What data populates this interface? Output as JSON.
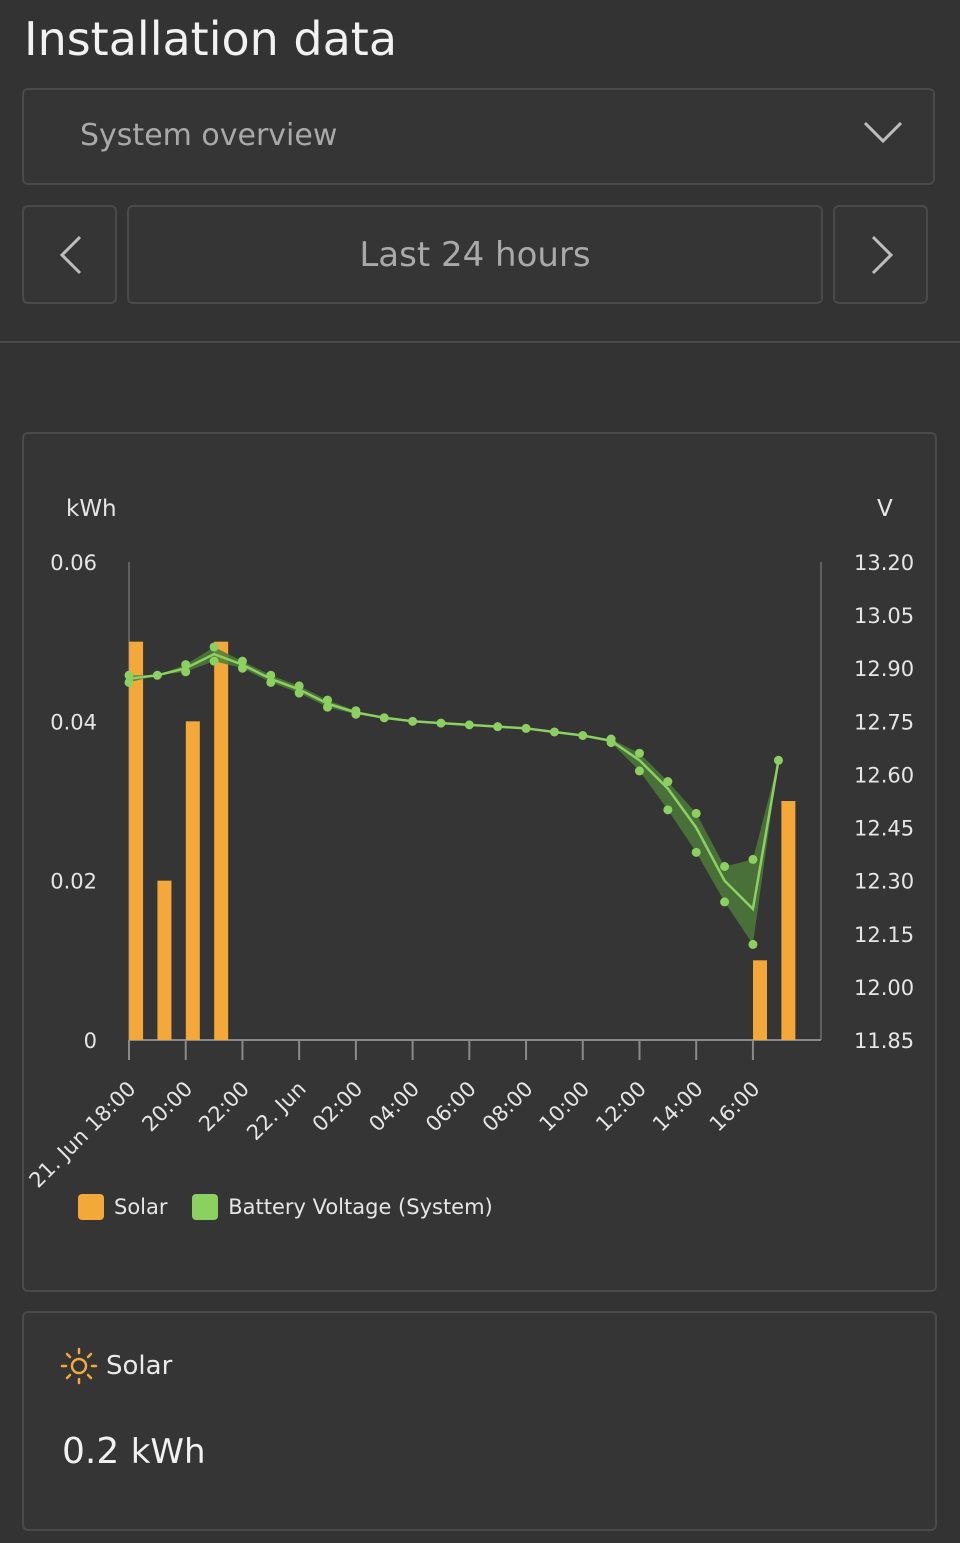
{
  "page": {
    "title": "Installation data"
  },
  "dropdown": {
    "selected": "System overview",
    "icon": "chevron-down-icon"
  },
  "range": {
    "label": "Last 24 hours",
    "prev_icon": "chevron-left-icon",
    "next_icon": "chevron-right-icon"
  },
  "colors": {
    "solar": "#f5a83a",
    "battery": "#8bd060",
    "battery_band": "#4d7a3a"
  },
  "chart_data": {
    "type": "bar+line",
    "y_left": {
      "label": "kWh",
      "ylim": [
        0,
        0.06
      ],
      "ticks": [
        "0",
        "0.02",
        "0.04",
        "0.06"
      ]
    },
    "y_right": {
      "label": "V",
      "ylim": [
        11.85,
        13.2
      ],
      "ticks": [
        "11.85",
        "12.00",
        "12.15",
        "12.30",
        "12.45",
        "12.60",
        "12.75",
        "12.90",
        "13.05",
        "13.20"
      ]
    },
    "x_ticks": [
      "21. Jun 18:00",
      "20:00",
      "22:00",
      "22. Jun",
      "02:00",
      "04:00",
      "06:00",
      "08:00",
      "10:00",
      "12:00",
      "14:00",
      "16:00"
    ],
    "x_range_hours": [
      0,
      24.4
    ],
    "series": [
      {
        "name": "Solar",
        "type": "bar",
        "points": [
          {
            "hour": 0.25,
            "value": 0.05
          },
          {
            "hour": 1.25,
            "value": 0.02
          },
          {
            "hour": 2.25,
            "value": 0.04
          },
          {
            "hour": 3.25,
            "value": 0.05
          },
          {
            "hour": 22.25,
            "value": 0.01
          },
          {
            "hour": 23.25,
            "value": 0.03
          }
        ]
      },
      {
        "name": "Battery Voltage (System)",
        "type": "line-range",
        "points": [
          {
            "hour": 0,
            "avg": 12.87,
            "min": 12.86,
            "max": 12.88
          },
          {
            "hour": 1,
            "avg": 12.88,
            "min": 12.88,
            "max": 12.88
          },
          {
            "hour": 2,
            "avg": 12.9,
            "min": 12.89,
            "max": 12.91
          },
          {
            "hour": 3,
            "avg": 12.94,
            "min": 12.92,
            "max": 12.96
          },
          {
            "hour": 4,
            "avg": 12.91,
            "min": 12.9,
            "max": 12.92
          },
          {
            "hour": 5,
            "avg": 12.87,
            "min": 12.86,
            "max": 12.88
          },
          {
            "hour": 6,
            "avg": 12.84,
            "min": 12.83,
            "max": 12.85
          },
          {
            "hour": 7,
            "avg": 12.8,
            "min": 12.79,
            "max": 12.81
          },
          {
            "hour": 8,
            "avg": 12.775,
            "min": 12.77,
            "max": 12.78
          },
          {
            "hour": 9,
            "avg": 12.76,
            "min": 12.76,
            "max": 12.76
          },
          {
            "hour": 10,
            "avg": 12.75,
            "min": 12.75,
            "max": 12.75
          },
          {
            "hour": 11,
            "avg": 12.745,
            "min": 12.745,
            "max": 12.745
          },
          {
            "hour": 12,
            "avg": 12.74,
            "min": 12.74,
            "max": 12.74
          },
          {
            "hour": 13,
            "avg": 12.735,
            "min": 12.735,
            "max": 12.735
          },
          {
            "hour": 14,
            "avg": 12.73,
            "min": 12.73,
            "max": 12.73
          },
          {
            "hour": 15,
            "avg": 12.72,
            "min": 12.72,
            "max": 12.72
          },
          {
            "hour": 16,
            "avg": 12.71,
            "min": 12.71,
            "max": 12.71
          },
          {
            "hour": 17,
            "avg": 12.695,
            "min": 12.69,
            "max": 12.7
          },
          {
            "hour": 18,
            "avg": 12.64,
            "min": 12.61,
            "max": 12.66
          },
          {
            "hour": 19,
            "avg": 12.56,
            "min": 12.5,
            "max": 12.58
          },
          {
            "hour": 20,
            "avg": 12.45,
            "min": 12.38,
            "max": 12.49
          },
          {
            "hour": 21,
            "avg": 12.3,
            "min": 12.24,
            "max": 12.34
          },
          {
            "hour": 22,
            "avg": 12.22,
            "min": 12.12,
            "max": 12.36
          },
          {
            "hour": 22.9,
            "avg": 12.64,
            "min": 12.64,
            "max": 12.64
          }
        ]
      }
    ],
    "legend_position": "bottom-left",
    "grid": false
  },
  "summary": {
    "label": "Solar",
    "value": "0.2",
    "unit": "kWh",
    "icon": "sun-icon"
  }
}
